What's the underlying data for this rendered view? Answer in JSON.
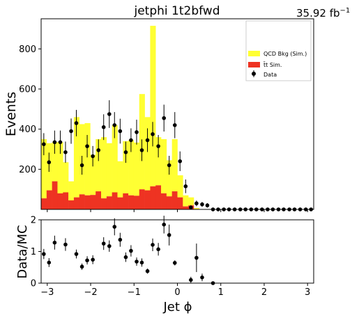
{
  "chart_data": [
    {
      "type": "bar",
      "panel": "main",
      "title": "jetphi  1t2bfwd",
      "lumi_label": "35.92 fb",
      "lumi_unit_exp": "−1",
      "ylabel": "Events",
      "xlim": [
        -3.14159,
        3.14159
      ],
      "ylim": [
        0,
        950
      ],
      "yticks": [
        200,
        400,
        600,
        800
      ],
      "ytick_labels": [
        "200",
        "400",
        "600",
        "800"
      ],
      "xticks": [
        -3,
        -2,
        -1,
        0,
        1,
        2,
        3
      ],
      "grid": false,
      "legend_position": "top-right",
      "legend": {
        "qcd": "QCD Bkg (Sim.)",
        "ttbar": "t̄t Sim.",
        "data": "Data"
      },
      "colors": {
        "qcd": "#ffff33",
        "ttbar": "#ee3322",
        "data": "#000000"
      },
      "bin_edges_first": -3.14159,
      "bin_width": 0.12566,
      "stacked": true,
      "series": [
        {
          "name": "t̄t Sim.",
          "values": [
            55,
            95,
            140,
            80,
            85,
            45,
            60,
            75,
            70,
            72,
            90,
            55,
            65,
            85,
            60,
            80,
            70,
            68,
            100,
            95,
            115,
            120,
            80,
            65,
            90,
            60,
            15,
            20,
            2,
            0,
            0,
            0,
            0,
            0,
            0,
            0,
            0,
            0,
            0,
            0,
            0,
            0,
            0,
            0,
            0,
            0,
            0,
            0,
            0,
            0
          ]
        },
        {
          "name": "QCD Bkg (Sim.)",
          "values": [
            295,
            235,
            195,
            255,
            150,
            95,
            400,
            350,
            360,
            200,
            260,
            305,
            265,
            335,
            180,
            260,
            275,
            265,
            475,
            365,
            800,
            240,
            270,
            180,
            260,
            110,
            55,
            40,
            5,
            0,
            0,
            0,
            0,
            0,
            0,
            0,
            0,
            0,
            0,
            0,
            0,
            0,
            0,
            0,
            0,
            0,
            0,
            0,
            0,
            0
          ]
        }
      ],
      "data_points": {
        "name": "Data",
        "x": [
          -3.08,
          -2.96,
          -2.83,
          -2.7,
          -2.58,
          -2.45,
          -2.33,
          -2.2,
          -2.08,
          -1.95,
          -1.82,
          -1.7,
          -1.57,
          -1.45,
          -1.32,
          -1.19,
          -1.07,
          -0.94,
          -0.82,
          -0.69,
          -0.57,
          -0.44,
          -0.31,
          -0.19,
          -0.06,
          0.06,
          0.19,
          0.31,
          0.44,
          0.57,
          0.69,
          0.82,
          0.94,
          1.07,
          1.19,
          1.32,
          1.45,
          1.57,
          1.7,
          1.82,
          1.95,
          2.08,
          2.2,
          2.33,
          2.45,
          2.58,
          2.7,
          2.83,
          2.96,
          3.08
        ],
        "y": [
          325,
          235,
          335,
          335,
          285,
          390,
          430,
          220,
          315,
          265,
          295,
          410,
          475,
          420,
          390,
          285,
          345,
          385,
          295,
          345,
          375,
          315,
          455,
          220,
          420,
          240,
          115,
          10,
          30,
          25,
          20,
          0,
          0,
          0,
          0,
          0,
          0,
          0,
          0,
          0,
          0,
          0,
          0,
          0,
          0,
          0,
          0,
          0,
          0,
          0
        ],
        "err": [
          55,
          48,
          58,
          58,
          53,
          63,
          66,
          47,
          56,
          51,
          54,
          64,
          69,
          65,
          62,
          53,
          59,
          62,
          54,
          59,
          61,
          56,
          67,
          47,
          65,
          49,
          34,
          10,
          14,
          12,
          11,
          0,
          0,
          0,
          0,
          0,
          0,
          0,
          0,
          0,
          0,
          0,
          0,
          0,
          0,
          0,
          0,
          0,
          0,
          0
        ]
      }
    },
    {
      "type": "scatter",
      "panel": "ratio",
      "ylabel": "Data/MC",
      "xlabel": "Jet ϕ",
      "xlim": [
        -3.14159,
        3.14159
      ],
      "ylim": [
        0,
        2
      ],
      "yticks": [
        0,
        1,
        2
      ],
      "ytick_labels": [
        "0",
        "1",
        "2"
      ],
      "xticks": [
        -3,
        -2,
        -1,
        0,
        1,
        2,
        3
      ],
      "xtick_labels": [
        "−3",
        "−2",
        "−1",
        "0",
        "1",
        "2",
        "3"
      ],
      "series": [
        {
          "name": "Data/MC",
          "x": [
            -3.08,
            -2.96,
            -2.83,
            -2.58,
            -2.33,
            -2.2,
            -2.08,
            -1.95,
            -1.7,
            -1.57,
            -1.45,
            -1.32,
            -1.19,
            -1.07,
            -0.94,
            -0.82,
            -0.69,
            -0.57,
            -0.44,
            -0.31,
            -0.19,
            -0.06,
            0.31,
            0.44,
            0.57,
            0.82
          ],
          "y": [
            0.92,
            0.65,
            1.28,
            1.22,
            0.92,
            0.52,
            0.72,
            0.74,
            1.25,
            1.17,
            1.78,
            1.37,
            0.82,
            1.02,
            0.68,
            0.65,
            0.38,
            1.21,
            1.07,
            1.85,
            1.52,
            0.64,
            0.1,
            0.8,
            0.18,
            0.0
          ],
          "err": [
            0.16,
            0.14,
            0.22,
            0.2,
            0.14,
            0.1,
            0.13,
            0.14,
            0.2,
            0.18,
            0.27,
            0.22,
            0.15,
            0.18,
            0.13,
            0.13,
            0.08,
            0.2,
            0.2,
            0.28,
            0.33,
            0.08,
            0.1,
            0.45,
            0.12,
            0.0
          ]
        }
      ]
    }
  ]
}
